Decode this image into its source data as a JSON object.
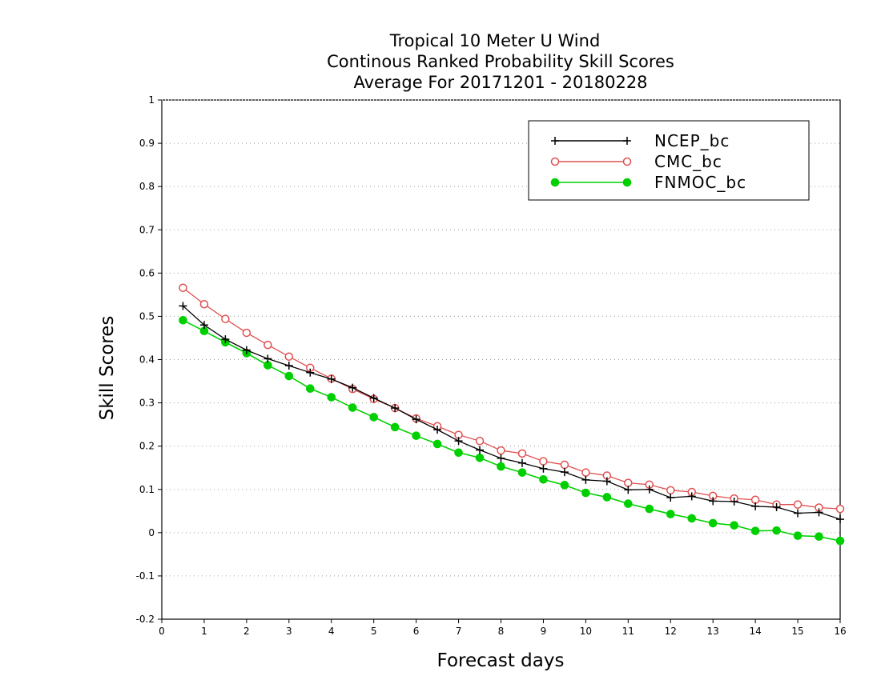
{
  "chart_data": {
    "type": "line",
    "title_lines": [
      "Tropical 10 Meter U Wind",
      "Continous Ranked Probability Skill Scores",
      "Average For 20171201 - 20180228"
    ],
    "xlabel": "Forecast days",
    "ylabel": "Skill Scores",
    "xlim": [
      0,
      16
    ],
    "ylim": [
      -0.2,
      1
    ],
    "x_ticks": [
      0,
      1,
      2,
      3,
      4,
      5,
      6,
      7,
      8,
      9,
      10,
      11,
      12,
      13,
      14,
      15,
      16
    ],
    "y_ticks": [
      -0.2,
      -0.1,
      0,
      0.1,
      0.2,
      0.3,
      0.4,
      0.5,
      0.6,
      0.7,
      0.8,
      0.9,
      1
    ],
    "y_tick_labels": [
      "-0.2",
      "-0.1",
      "0",
      "0.1",
      "0.2",
      "0.3",
      "0.4",
      "0.5",
      "0.6",
      "0.7",
      "0.8",
      "0.9",
      "1"
    ],
    "grid": "horizontal dotted",
    "legend_position": "top-right",
    "x": [
      0.5,
      1,
      1.5,
      2,
      2.5,
      3,
      3.5,
      4,
      4.5,
      5,
      5.5,
      6,
      6.5,
      7,
      7.5,
      8,
      8.5,
      9,
      9.5,
      10,
      10.5,
      11,
      11.5,
      12,
      12.5,
      13,
      13.5,
      14,
      14.5,
      15,
      15.5,
      16
    ],
    "series": [
      {
        "name": "NCEP_bc",
        "color": "#000000",
        "marker": "plus",
        "values": [
          0.524,
          0.48,
          0.447,
          0.422,
          0.402,
          0.386,
          0.37,
          0.355,
          0.335,
          0.311,
          0.288,
          0.262,
          0.238,
          0.212,
          0.191,
          0.172,
          0.161,
          0.148,
          0.14,
          0.122,
          0.119,
          0.099,
          0.1,
          0.081,
          0.084,
          0.073,
          0.072,
          0.061,
          0.059,
          0.045,
          0.047,
          0.031
        ]
      },
      {
        "name": "CMC_bc",
        "color": "#e05050",
        "marker": "open-circle",
        "values": [
          0.566,
          0.528,
          0.494,
          0.462,
          0.434,
          0.407,
          0.381,
          0.356,
          0.332,
          0.309,
          0.288,
          0.264,
          0.246,
          0.226,
          0.212,
          0.19,
          0.183,
          0.165,
          0.157,
          0.139,
          0.132,
          0.115,
          0.111,
          0.098,
          0.094,
          0.085,
          0.079,
          0.076,
          0.065,
          0.065,
          0.058,
          0.055
        ]
      },
      {
        "name": "FNMOC_bc",
        "color": "#00d000",
        "marker": "filled-circle",
        "values": [
          0.491,
          0.466,
          0.44,
          0.415,
          0.387,
          0.362,
          0.333,
          0.313,
          0.289,
          0.267,
          0.244,
          0.224,
          0.205,
          0.185,
          0.173,
          0.153,
          0.139,
          0.123,
          0.11,
          0.092,
          0.082,
          0.067,
          0.055,
          0.043,
          0.033,
          0.022,
          0.017,
          0.004,
          0.005,
          -0.007,
          -0.009,
          -0.019
        ]
      }
    ]
  }
}
